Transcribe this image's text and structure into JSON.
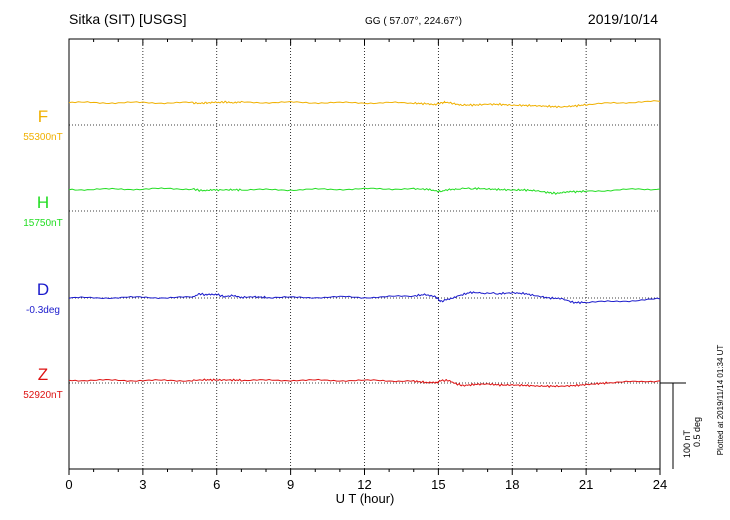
{
  "header": {
    "station": "Sitka (SIT)  [USGS]",
    "coords": "GG ( 57.07°, 224.67°)",
    "date": "2019/10/14"
  },
  "scale_bar": {
    "label_nt": "100 nT",
    "label_deg": "0.5 deg"
  },
  "footer": {
    "plotted": "Plotted at 2019/11/14 01:34 UT"
  },
  "chart_data": {
    "type": "line",
    "xlabel": "U T (hour)",
    "xlim": [
      0,
      24
    ],
    "xticks": [
      "0",
      "3",
      "6",
      "9",
      "12",
      "15",
      "18",
      "21",
      "24"
    ],
    "grid": true,
    "series": [
      {
        "name": "F",
        "baseline_label": "55300nT",
        "color": "#f0b000",
        "x": [
          0,
          1,
          2,
          3,
          4,
          5,
          5.3,
          5.6,
          6,
          6.3,
          6.6,
          7,
          8,
          9,
          10,
          11,
          12,
          13,
          14,
          14.5,
          14.9,
          15.1,
          15.3,
          15.6,
          16,
          16.5,
          17,
          17.5,
          18,
          18.5,
          19,
          19.5,
          20,
          20.5,
          21,
          22,
          23,
          24
        ],
        "y": [
          112,
          112,
          111,
          112,
          111,
          111,
          108,
          111,
          112,
          115,
          112,
          113,
          113,
          113,
          112,
          111,
          111,
          111,
          109,
          106,
          104,
          110,
          114,
          108,
          100,
          100,
          104,
          103,
          99,
          98,
          96,
          93,
          90,
          95,
          101,
          109,
          115,
          118
        ]
      },
      {
        "name": "H",
        "baseline_label": "15750nT",
        "color": "#22dd22",
        "x": [
          0,
          1,
          2,
          3,
          4,
          5,
          5.3,
          5.6,
          6,
          6.5,
          7,
          8,
          9,
          10,
          11,
          12,
          13,
          14,
          14.6,
          14.9,
          15.1,
          15.4,
          15.8,
          16.5,
          17,
          17.5,
          18,
          18.5,
          19,
          19.5,
          19.8,
          20.1,
          20.5,
          21,
          22,
          23,
          24
        ],
        "y": [
          108,
          108,
          109,
          110,
          111,
          111,
          103,
          102,
          105,
          106,
          106,
          106,
          106,
          108,
          109,
          110,
          111,
          111,
          108,
          100,
          98,
          107,
          112,
          113,
          110,
          107,
          105,
          105,
          101,
          91,
          88,
          93,
          96,
          99,
          104,
          108,
          110
        ]
      },
      {
        "name": "D",
        "baseline_label": "-0.3deg",
        "color": "#1a1acc",
        "x": [
          0,
          1,
          2,
          3,
          4,
          5,
          5.3,
          5.6,
          6,
          6.3,
          6.6,
          7,
          7.5,
          8,
          9,
          10,
          11,
          12,
          13,
          14,
          14.5,
          14.9,
          15.1,
          15.4,
          15.8,
          16.3,
          16.8,
          17.5,
          18,
          18.5,
          19,
          19.5,
          20,
          20.5,
          21,
          22,
          23,
          24
        ],
        "y": [
          0,
          1,
          2,
          3,
          2,
          3,
          21,
          15,
          18,
          7,
          11,
          3,
          6,
          3,
          2,
          3,
          5,
          3,
          6,
          10,
          18,
          5,
          -18,
          -5,
          10,
          28,
          25,
          22,
          26,
          22,
          10,
          0,
          -3,
          -23,
          -22,
          -18,
          -12,
          -5
        ]
      },
      {
        "name": "Z",
        "baseline_label": "52920nT",
        "color": "#dd1111",
        "x": [
          0,
          1,
          2,
          3,
          4,
          5,
          5.5,
          6,
          6.5,
          7,
          8,
          9,
          10,
          11,
          12,
          13,
          14,
          14.5,
          14.9,
          15.1,
          15.4,
          15.7,
          16,
          16.5,
          17,
          17.5,
          18,
          18.5,
          19,
          19.5,
          20,
          20.5,
          21,
          21.5,
          22,
          23,
          24
        ],
        "y": [
          14,
          14,
          13,
          13,
          12,
          13,
          16,
          15,
          15,
          14,
          13,
          14,
          13,
          13,
          12,
          12,
          9,
          3,
          0,
          12,
          13,
          -3,
          -13,
          -7,
          -5,
          -10,
          -10,
          -12,
          -15,
          -16,
          -16,
          -13,
          -8,
          -3,
          2,
          6,
          11
        ]
      }
    ]
  }
}
